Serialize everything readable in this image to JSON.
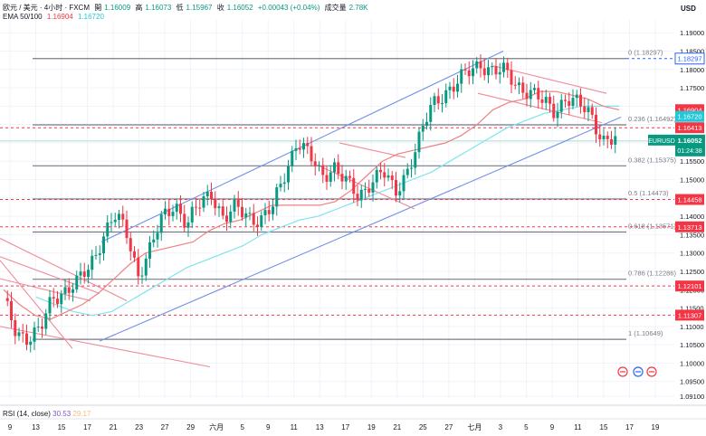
{
  "legend": {
    "symbol": "欧元 / 美元 · 4小时 · FXCM",
    "open_label": "開",
    "open": "1.16009",
    "high_label": "高",
    "high": "1.16073",
    "low_label": "低",
    "low": "1.15967",
    "close_label": "收",
    "close": "1.16052",
    "change": "+0.00043 (+0.04%)",
    "volume_label": "成交量",
    "volume": "2.78K",
    "ema_label": "EMA 50/100",
    "ema_fast": "1.16904",
    "ema_slow": "1.16720"
  },
  "currency": "USD",
  "rsi": {
    "label": "RSI (14, close)",
    "value": "30.53",
    "ma": "29.17"
  },
  "chart_data": {
    "type": "candlestick",
    "symbol": "EURUSD",
    "ylim": [
      1.0905,
      1.1935
    ],
    "y_ticks": [
      "1.19000",
      "1.18500",
      "1.18000",
      "1.17500",
      "1.17000",
      "1.16500",
      "1.16000",
      "1.15500",
      "1.15000",
      "1.14500",
      "1.14000",
      "1.13500",
      "1.13000",
      "1.12500",
      "1.12000",
      "1.11500",
      "1.11000",
      "1.10500",
      "1.10000",
      "1.09500",
      "1.09100"
    ],
    "x_ticks": [
      "9",
      "13",
      "15",
      "17",
      "21",
      "23",
      "27",
      "29",
      "六月",
      "5",
      "9",
      "11",
      "13",
      "17",
      "19",
      "21",
      "25",
      "27",
      "七月",
      "3",
      "5",
      "9",
      "11",
      "15",
      "17",
      "19"
    ],
    "anchor_prices": [
      1.1165,
      1.109,
      1.107,
      1.1085,
      1.118,
      1.12,
      1.1215,
      1.126,
      1.134,
      1.14,
      1.136,
      1.1245,
      1.131,
      1.1395,
      1.144,
      1.1375,
      1.143,
      1.147,
      1.139,
      1.142,
      1.1405,
      1.139,
      1.142,
      1.152,
      1.161,
      1.156,
      1.151,
      1.154,
      1.149,
      1.145,
      1.15,
      1.152,
      1.146,
      1.153,
      1.161,
      1.17,
      1.174,
      1.176,
      1.179,
      1.182,
      1.1795,
      1.179,
      1.176,
      1.174,
      1.171,
      1.169,
      1.1725,
      1.17,
      1.168,
      1.161,
      1.1605
    ],
    "ema_fast": [
      1.12,
      1.116,
      1.113,
      1.112,
      1.114,
      1.116,
      1.119,
      1.123,
      1.127,
      1.13,
      1.131,
      1.132,
      1.133,
      1.136,
      1.138,
      1.139,
      1.141,
      1.143,
      1.143,
      1.143,
      1.143,
      1.144,
      1.147,
      1.151,
      1.155,
      1.157,
      1.158,
      1.159,
      1.16,
      1.162,
      1.165,
      1.169,
      1.171,
      1.172,
      1.174,
      1.174,
      1.173,
      1.172,
      1.17,
      1.169
    ],
    "ema_slow": [
      1.118,
      1.116,
      1.114,
      1.113,
      1.114,
      1.117,
      1.12,
      1.123,
      1.126,
      1.128,
      1.13,
      1.132,
      1.135,
      1.137,
      1.139,
      1.14,
      1.142,
      1.144,
      1.146,
      1.148,
      1.15,
      1.152,
      1.155,
      1.158,
      1.161,
      1.164,
      1.166,
      1.168,
      1.169,
      1.17,
      1.17,
      1.17
    ],
    "fibonacci": [
      {
        "label": "0 (1.18297)",
        "price": 1.18297
      },
      {
        "label": "0.236 (1.16492)",
        "price": 1.16492
      },
      {
        "label": "0.382 (1.15375)",
        "price": 1.15375
      },
      {
        "label": "0.5 (1.14473)",
        "price": 1.14473
      },
      {
        "label": "0.618 (1.13571)",
        "price": 1.13571
      },
      {
        "label": "0.786 (1.12286)",
        "price": 1.12286
      },
      {
        "label": "1 (1.10649)",
        "price": 1.10649
      }
    ],
    "horizontal_levels": [
      {
        "price": 1.18297,
        "color": "#2962ff"
      },
      {
        "price": 1.16413,
        "color": "#f23645"
      },
      {
        "price": 1.14458,
        "color": "#f23645"
      },
      {
        "price": 1.13713,
        "color": "#f23645"
      },
      {
        "price": 1.12101,
        "color": "#f23645"
      },
      {
        "price": 1.11307,
        "color": "#f23645"
      }
    ],
    "price_labels": [
      {
        "text": "1.18297",
        "price": 1.18297,
        "color": "#2962ff",
        "outline": true
      },
      {
        "text": "1.16904",
        "price": 1.16904,
        "color": "#f23645"
      },
      {
        "text": "1.16720",
        "price": 1.1672,
        "color": "#22c7d9"
      },
      {
        "text": "1.16413",
        "price": 1.16413,
        "color": "#f23645"
      },
      {
        "text": "1.14458",
        "price": 1.14458,
        "color": "#f23645"
      },
      {
        "text": "1.13713",
        "price": 1.13713,
        "color": "#f23645"
      },
      {
        "text": "1.12101",
        "price": 1.12101,
        "color": "#f23645"
      },
      {
        "text": "1.11307",
        "price": 1.11307,
        "color": "#f23645"
      }
    ],
    "current": {
      "symbol": "EURUSD",
      "price": "1.16052",
      "countdown": "01:24:38",
      "value": 1.16052,
      "color": "#089981"
    },
    "colors": {
      "up": "#089981",
      "down": "#f23645",
      "channel": "#6f8fe8",
      "resistance": "#f08a98",
      "fib": "#787b86",
      "ema_fast": "#f08080",
      "ema_slow": "#7fe3ee"
    }
  }
}
